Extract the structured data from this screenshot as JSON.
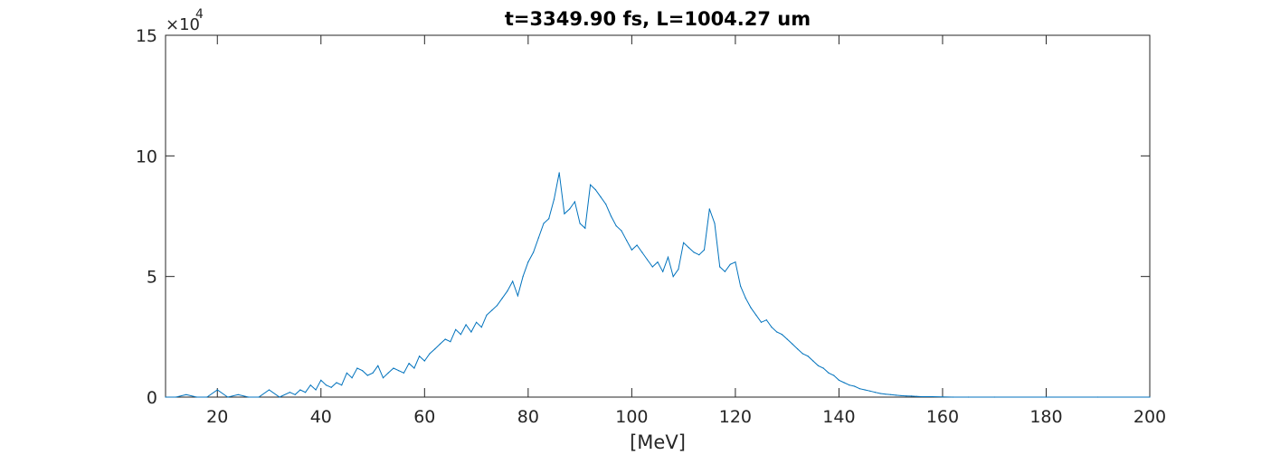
{
  "chart_data": {
    "type": "line",
    "title": "t=3349.90 fs, L=1004.27 um",
    "xlabel": "[MeV]",
    "ylabel": "",
    "y_multiplier_base": "×10",
    "y_multiplier_exponent": "4",
    "xlim": [
      10,
      200
    ],
    "ylim": [
      0,
      15
    ],
    "xticks": [
      20,
      40,
      60,
      80,
      100,
      120,
      140,
      160,
      180,
      200
    ],
    "yticks": [
      0,
      5,
      10,
      15
    ],
    "grid": false,
    "line_color": "#0072BD",
    "series": [
      {
        "x": [
          10,
          12,
          14,
          16,
          18,
          20,
          22,
          24,
          26,
          28,
          30,
          32,
          34,
          35,
          36,
          37,
          38,
          39,
          40,
          41,
          42,
          43,
          44,
          45,
          46,
          47,
          48,
          49,
          50,
          51,
          52,
          53,
          54,
          55,
          56,
          57,
          58,
          59,
          60,
          61,
          62,
          63,
          64,
          65,
          66,
          67,
          68,
          69,
          70,
          71,
          72,
          73,
          74,
          75,
          76,
          77,
          78,
          79,
          80,
          81,
          82,
          83,
          84,
          85,
          86,
          87,
          88,
          89,
          90,
          91,
          92,
          93,
          94,
          95,
          96,
          97,
          98,
          99,
          100,
          101,
          102,
          103,
          104,
          105,
          106,
          107,
          108,
          109,
          110,
          111,
          112,
          113,
          114,
          115,
          116,
          117,
          118,
          119,
          120,
          121,
          122,
          123,
          124,
          125,
          126,
          127,
          128,
          129,
          130,
          131,
          132,
          133,
          134,
          135,
          136,
          137,
          138,
          139,
          140,
          141,
          142,
          143,
          144,
          145,
          146,
          147,
          148,
          149,
          150,
          151,
          152,
          153,
          154,
          155,
          156,
          158,
          160,
          162,
          165,
          170,
          180,
          190,
          200
        ],
        "y": [
          0,
          0,
          0.1,
          0,
          0,
          0.3,
          0,
          0.1,
          0,
          0,
          0.3,
          0,
          0.2,
          0.1,
          0.3,
          0.2,
          0.5,
          0.3,
          0.7,
          0.5,
          0.4,
          0.6,
          0.5,
          1.0,
          0.8,
          1.2,
          1.1,
          0.9,
          1.0,
          1.3,
          0.8,
          1.0,
          1.2,
          1.1,
          1.0,
          1.4,
          1.2,
          1.7,
          1.5,
          1.8,
          2.0,
          2.2,
          2.4,
          2.3,
          2.8,
          2.6,
          3.0,
          2.7,
          3.1,
          2.9,
          3.4,
          3.6,
          3.8,
          4.1,
          4.4,
          4.8,
          4.2,
          5.0,
          5.6,
          6.0,
          6.6,
          7.2,
          7.4,
          8.2,
          9.3,
          7.6,
          7.8,
          8.1,
          7.2,
          7.0,
          8.8,
          8.6,
          8.3,
          8.0,
          7.5,
          7.1,
          6.9,
          6.5,
          6.1,
          6.3,
          6.0,
          5.7,
          5.4,
          5.6,
          5.2,
          5.8,
          5.0,
          5.3,
          6.4,
          6.2,
          6.0,
          5.9,
          6.1,
          7.8,
          7.2,
          5.4,
          5.2,
          5.5,
          5.6,
          4.6,
          4.1,
          3.7,
          3.4,
          3.1,
          3.2,
          2.9,
          2.7,
          2.6,
          2.4,
          2.2,
          2.0,
          1.8,
          1.7,
          1.5,
          1.3,
          1.2,
          1.0,
          0.9,
          0.7,
          0.6,
          0.5,
          0.45,
          0.35,
          0.3,
          0.25,
          0.2,
          0.15,
          0.12,
          0.1,
          0.08,
          0.06,
          0.05,
          0.04,
          0.03,
          0.02,
          0.02,
          0.01,
          0,
          0,
          0,
          0,
          0,
          0
        ]
      }
    ]
  }
}
